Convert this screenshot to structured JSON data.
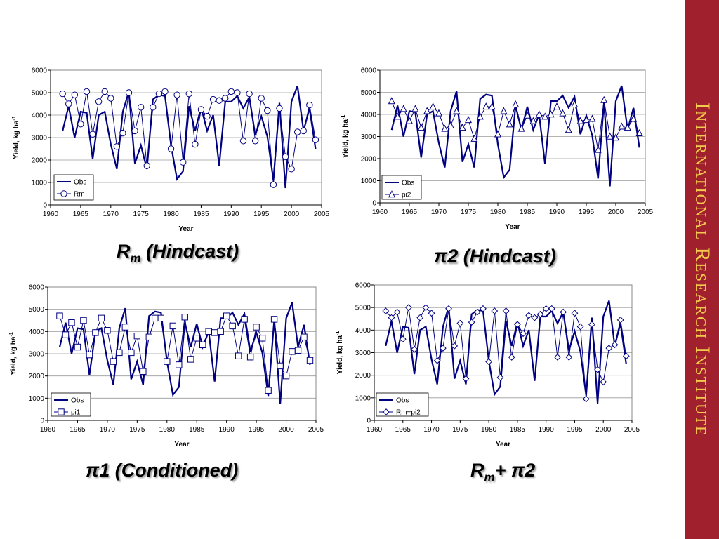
{
  "sidebar": {
    "text": "International Research Institute"
  },
  "captions": [
    {
      "main": "R",
      "sub": "m",
      "rest": " (Hindcast)"
    },
    {
      "main": "π2 (Hindcast)",
      "sub": "",
      "rest": ""
    },
    {
      "main": "π1 (Conditioned)",
      "sub": "",
      "rest": ""
    },
    {
      "main": "R",
      "sub": "m",
      "rest": "+ π2"
    }
  ],
  "colors": {
    "obs": "#000080",
    "model": "#000080",
    "sidebar": "#a0212d",
    "sidebar_text": "#f2c94c"
  },
  "chart_data": [
    {
      "type": "line",
      "xlabel": "Year",
      "ylabel": "Yield, kg ha",
      "ylabel_sup": "-1",
      "xlim": [
        1960,
        2005
      ],
      "ylim": [
        0,
        6000
      ],
      "xticks": [
        1960,
        1965,
        1970,
        1975,
        1980,
        1985,
        1990,
        1995,
        2000,
        2005
      ],
      "yticks": [
        0,
        1000,
        2000,
        3000,
        4000,
        5000,
        6000
      ],
      "legend": "bottom-left",
      "grid": true,
      "x": [
        1962,
        1963,
        1964,
        1965,
        1966,
        1967,
        1968,
        1969,
        1970,
        1971,
        1972,
        1973,
        1974,
        1975,
        1976,
        1977,
        1978,
        1979,
        1980,
        1981,
        1982,
        1983,
        1984,
        1985,
        1986,
        1987,
        1988,
        1989,
        1990,
        1991,
        1992,
        1993,
        1994,
        1995,
        1996,
        1997,
        1998,
        1999,
        2000,
        2001,
        2002,
        2003,
        2004
      ],
      "series": [
        {
          "name": "Obs",
          "marker": "none",
          "values": [
            3300,
            4400,
            3000,
            4150,
            4100,
            2050,
            4000,
            4150,
            2700,
            1600,
            4150,
            5050,
            1850,
            2650,
            1600,
            4700,
            4900,
            4850,
            2650,
            1150,
            1500,
            4400,
            3300,
            4350,
            3300,
            4000,
            1750,
            4600,
            4600,
            4850,
            4300,
            4800,
            3100,
            3950,
            3050,
            1100,
            4550,
            750,
            4600,
            5300,
            3300,
            4300,
            2500
          ]
        },
        {
          "name": "Rm",
          "marker": "circle",
          "values": [
            4950,
            4500,
            4900,
            3600,
            5050,
            3150,
            4600,
            5050,
            4750,
            2600,
            3200,
            5000,
            3300,
            4350,
            1750,
            4350,
            4950,
            5050,
            2500,
            4900,
            1900,
            4950,
            2700,
            4250,
            3950,
            4700,
            4650,
            4750,
            5050,
            5000,
            2850,
            4950,
            2850,
            4750,
            4200,
            900,
            4300,
            2150,
            1600,
            3250,
            3300,
            4450,
            2900
          ]
        }
      ]
    },
    {
      "type": "line",
      "xlabel": "Year",
      "ylabel": "Yield, kg ha",
      "ylabel_sup": "-1",
      "xlim": [
        1960,
        2005
      ],
      "ylim": [
        0,
        6000
      ],
      "xticks": [
        1960,
        1965,
        1970,
        1975,
        1980,
        1985,
        1990,
        1995,
        2000,
        2005
      ],
      "yticks": [
        0,
        1000,
        2000,
        3000,
        4000,
        5000,
        6000
      ],
      "legend": "bottom-left",
      "grid": true,
      "x": [
        1962,
        1963,
        1964,
        1965,
        1966,
        1967,
        1968,
        1969,
        1970,
        1971,
        1972,
        1973,
        1974,
        1975,
        1976,
        1977,
        1978,
        1979,
        1980,
        1981,
        1982,
        1983,
        1984,
        1985,
        1986,
        1987,
        1988,
        1989,
        1990,
        1991,
        1992,
        1993,
        1994,
        1995,
        1996,
        1997,
        1998,
        1999,
        2000,
        2001,
        2002,
        2003,
        2004
      ],
      "series": [
        {
          "name": "Obs",
          "marker": "none",
          "values": [
            3300,
            4400,
            3000,
            4150,
            4100,
            2050,
            4000,
            4150,
            2700,
            1600,
            4150,
            5050,
            1850,
            2650,
            1600,
            4700,
            4900,
            4850,
            2650,
            1150,
            1500,
            4400,
            3300,
            4350,
            3300,
            4000,
            1750,
            4600,
            4600,
            4850,
            4300,
            4800,
            3100,
            3950,
            3050,
            1100,
            4550,
            750,
            4600,
            5300,
            3300,
            4300,
            2500
          ]
        },
        {
          "name": "pi2",
          "marker": "triangle",
          "values": [
            4600,
            3900,
            4250,
            3700,
            4250,
            3400,
            4150,
            4350,
            4050,
            3350,
            3500,
            4150,
            3400,
            3750,
            2900,
            3900,
            4350,
            4350,
            3100,
            4150,
            3550,
            4450,
            3350,
            3950,
            3700,
            4000,
            3900,
            4000,
            4350,
            4050,
            3300,
            4450,
            3700,
            3750,
            3800,
            2400,
            4650,
            3000,
            2950,
            3450,
            3400,
            3800,
            3150
          ]
        }
      ]
    },
    {
      "type": "line",
      "xlabel": "Year",
      "ylabel": "Yield, kg ha",
      "ylabel_sup": "-1",
      "xlim": [
        1960,
        2005
      ],
      "ylim": [
        0,
        6000
      ],
      "xticks": [
        1960,
        1965,
        1970,
        1975,
        1980,
        1985,
        1990,
        1995,
        2000,
        2005
      ],
      "yticks": [
        0,
        1000,
        2000,
        3000,
        4000,
        5000,
        6000
      ],
      "legend": "bottom-left",
      "grid": true,
      "x": [
        1962,
        1963,
        1964,
        1965,
        1966,
        1967,
        1968,
        1969,
        1970,
        1971,
        1972,
        1973,
        1974,
        1975,
        1976,
        1977,
        1978,
        1979,
        1980,
        1981,
        1982,
        1983,
        1984,
        1985,
        1986,
        1987,
        1988,
        1989,
        1990,
        1991,
        1992,
        1993,
        1994,
        1995,
        1996,
        1997,
        1998,
        1999,
        2000,
        2001,
        2002,
        2003,
        2004
      ],
      "series": [
        {
          "name": "Obs",
          "marker": "none",
          "values": [
            3300,
            4400,
            3000,
            4150,
            4100,
            2050,
            4000,
            4150,
            2700,
            1600,
            4150,
            5050,
            1850,
            2650,
            1600,
            4700,
            4900,
            4850,
            2650,
            1150,
            1500,
            4400,
            3300,
            4350,
            3300,
            4000,
            1750,
            4600,
            4600,
            4850,
            4300,
            4800,
            3100,
            3950,
            3050,
            1100,
            4550,
            750,
            4600,
            5300,
            3300,
            4300,
            2500
          ]
        },
        {
          "name": "pi1",
          "marker": "square",
          "values": [
            4700,
            3850,
            4400,
            3300,
            4500,
            2950,
            3950,
            4600,
            4050,
            2650,
            3050,
            4200,
            3050,
            3800,
            2200,
            3750,
            4600,
            4600,
            2650,
            4250,
            2500,
            4650,
            2750,
            3700,
            3400,
            4000,
            3950,
            4000,
            4700,
            4250,
            2900,
            4550,
            2850,
            4200,
            3700,
            1350,
            4550,
            2450,
            2000,
            3100,
            3150,
            3750,
            2700
          ]
        }
      ]
    },
    {
      "type": "line",
      "xlabel": "Year",
      "ylabel": "Yield, kg ha",
      "ylabel_sup": "-1",
      "xlim": [
        1960,
        2005
      ],
      "ylim": [
        0,
        6000
      ],
      "xticks": [
        1960,
        1965,
        1970,
        1975,
        1980,
        1985,
        1990,
        1995,
        2000,
        2005
      ],
      "yticks": [
        0,
        1000,
        2000,
        3000,
        4000,
        5000,
        6000
      ],
      "legend": "bottom-left",
      "grid": true,
      "x": [
        1962,
        1963,
        1964,
        1965,
        1966,
        1967,
        1968,
        1969,
        1970,
        1971,
        1972,
        1973,
        1974,
        1975,
        1976,
        1977,
        1978,
        1979,
        1980,
        1981,
        1982,
        1983,
        1984,
        1985,
        1986,
        1987,
        1988,
        1989,
        1990,
        1991,
        1992,
        1993,
        1994,
        1995,
        1996,
        1997,
        1998,
        1999,
        2000,
        2001,
        2002,
        2003,
        2004
      ],
      "series": [
        {
          "name": "Obs",
          "marker": "none",
          "values": [
            3300,
            4400,
            3000,
            4150,
            4100,
            2050,
            4000,
            4150,
            2700,
            1600,
            4150,
            5050,
            1850,
            2650,
            1600,
            4700,
            4900,
            4850,
            2650,
            1150,
            1500,
            4400,
            3300,
            4350,
            3300,
            4000,
            1750,
            4600,
            4600,
            4850,
            4300,
            4800,
            3100,
            3950,
            3050,
            1100,
            4550,
            750,
            4600,
            5300,
            3300,
            4300,
            2500
          ]
        },
        {
          "name": "Rm+pi2",
          "marker": "diamond",
          "values": [
            4850,
            4550,
            4800,
            3600,
            5000,
            3150,
            4550,
            5000,
            4750,
            2650,
            3200,
            4950,
            3300,
            4300,
            1850,
            4350,
            4800,
            4950,
            2600,
            4850,
            1900,
            4850,
            2800,
            4250,
            3850,
            4650,
            4550,
            4700,
            4950,
            4950,
            2800,
            4800,
            2800,
            4750,
            4150,
            950,
            4250,
            2250,
            1700,
            3200,
            3350,
            4450,
            2850
          ]
        }
      ]
    }
  ]
}
